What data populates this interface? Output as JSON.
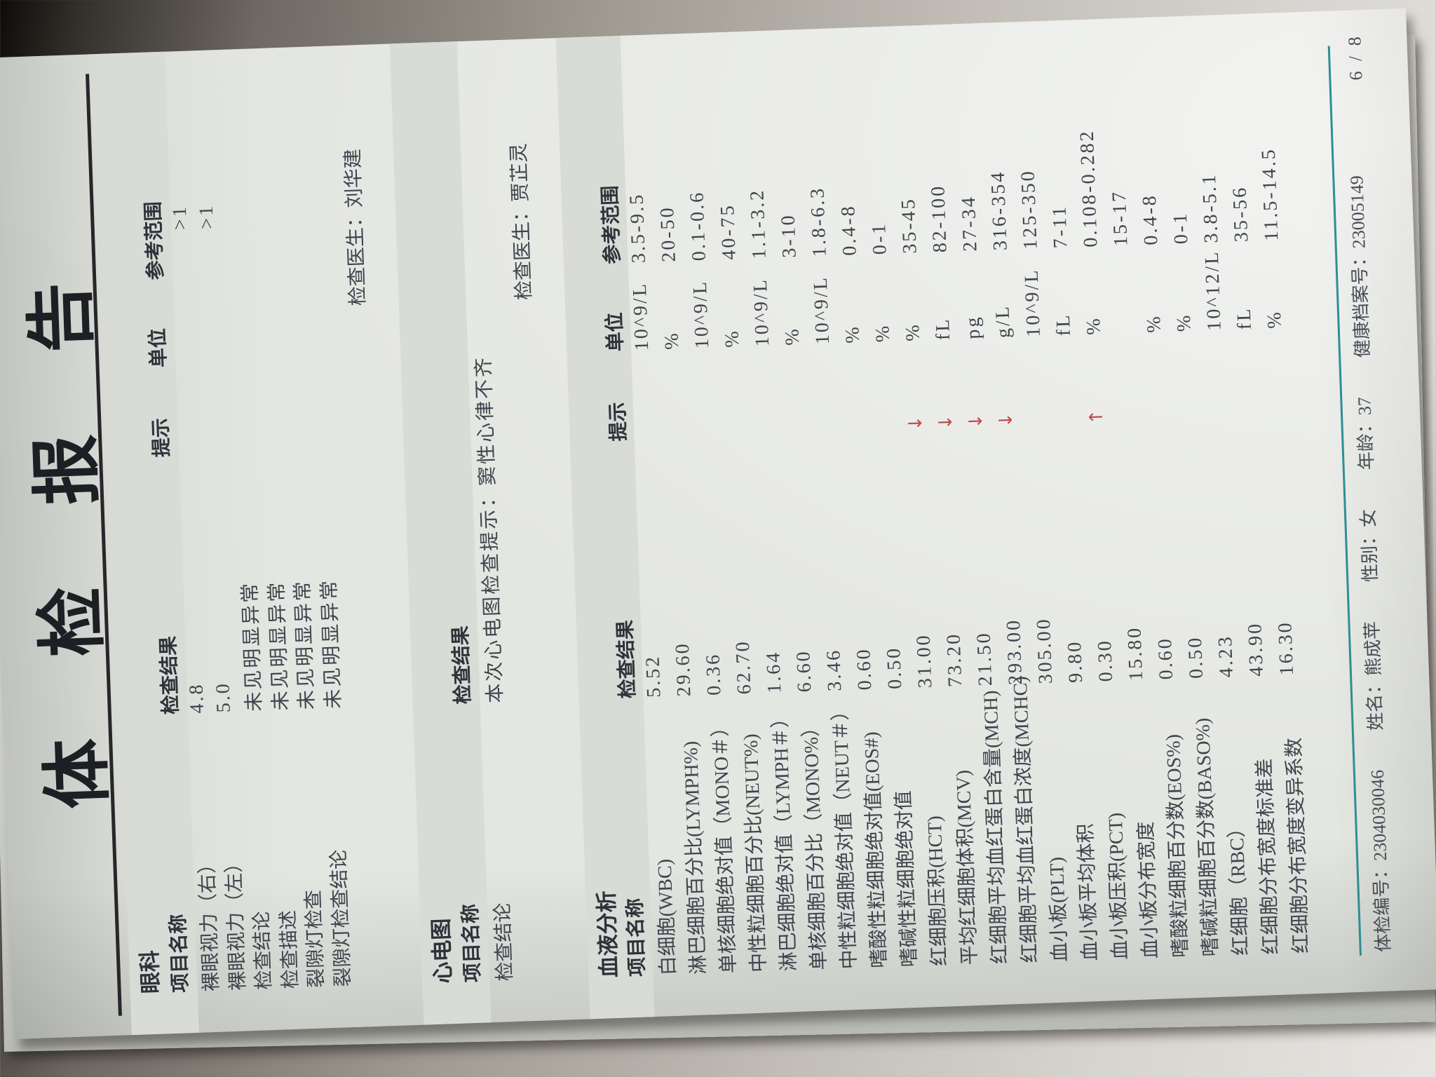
{
  "page": {
    "title": "体 检 报 告",
    "page_indicator": "6 / 8"
  },
  "colors": {
    "accent_teal": "#2f8e94",
    "arrow_red": "#c04a48",
    "paper": "#e4e6e1"
  },
  "columns": {
    "name": "项目名称",
    "result": "检查结果",
    "hint": "提示",
    "unit": "单位",
    "range": "参考范围"
  },
  "sections": [
    {
      "id": "eye",
      "title": "眼科",
      "headers": {
        "name": "项目名称",
        "result": "检查结果",
        "hint": "提示",
        "unit": "单位",
        "range": "参考范围"
      },
      "rows": [
        {
          "name": "裸眼视力（右）",
          "result": "4.8",
          "hint": "",
          "unit": "",
          "range": ">1"
        },
        {
          "name": "裸眼视力（左）",
          "result": "5.0",
          "hint": "",
          "unit": "",
          "range": ">1"
        },
        {
          "name": "检查结论",
          "result": "未见明显异常",
          "hint": "",
          "unit": "",
          "range": ""
        },
        {
          "name": "检查描述",
          "result": "未见明显异常",
          "hint": "",
          "unit": "",
          "range": ""
        },
        {
          "name": "裂隙灯检查",
          "result": "未见明显异常",
          "hint": "",
          "unit": "",
          "range": ""
        },
        {
          "name": "裂隙灯检查结论",
          "result": "未见明显异常",
          "hint": "",
          "unit": "",
          "range": ""
        }
      ],
      "doctor_label": "检查医生：",
      "doctor": "刘华建"
    },
    {
      "id": "ecg",
      "title": "心电图",
      "headers": {
        "name": "项目名称",
        "result": "检查结果",
        "hint": "",
        "unit": "",
        "range": ""
      },
      "rows": [
        {
          "name": "检查结论",
          "result": "本次心电图检查提示：窦性心律不齐",
          "hint": "",
          "unit": "",
          "range": ""
        }
      ],
      "doctor_label": "检查医生：",
      "doctor": "贾芷灵"
    },
    {
      "id": "blood",
      "title": "血液分析",
      "headers": {
        "name": "项目名称",
        "result": "检查结果",
        "hint": "提示",
        "unit": "单位",
        "range": "参考范围"
      },
      "rows": [
        {
          "name": "白细胞(WBC)",
          "result": "5.52",
          "hint": "",
          "unit": "10^9/L",
          "range": "3.5-9.5"
        },
        {
          "name": "淋巴细胞百分比(LYMPH%)",
          "result": "29.60",
          "hint": "",
          "unit": "%",
          "range": "20-50"
        },
        {
          "name": "单核细胞绝对值（MONO＃）",
          "result": "0.36",
          "hint": "",
          "unit": "10^9/L",
          "range": "0.1-0.6"
        },
        {
          "name": "中性粒细胞百分比(NEUT%)",
          "result": "62.70",
          "hint": "",
          "unit": "%",
          "range": "40-75"
        },
        {
          "name": "淋巴细胞绝对值（LYMPH＃）",
          "result": "1.64",
          "hint": "",
          "unit": "10^9/L",
          "range": "1.1-3.2"
        },
        {
          "name": "单核细胞百分比（MONO%）",
          "result": "6.60",
          "hint": "",
          "unit": "%",
          "range": "3-10"
        },
        {
          "name": "中性粒细胞绝对值（NEUT＃）",
          "result": "3.46",
          "hint": "",
          "unit": "10^9/L",
          "range": "1.8-6.3"
        },
        {
          "name": "嗜酸性粒细胞绝对值(EOS#)",
          "result": "0.60",
          "hint": "",
          "unit": "%",
          "range": "0.4-8"
        },
        {
          "name": "嗜碱性粒细胞绝对值",
          "result": "0.50",
          "hint": "",
          "unit": "%",
          "range": "0-1"
        },
        {
          "name": "红细胞压积(HCT)",
          "result": "31.00",
          "hint": "↓",
          "unit": "%",
          "range": "35-45"
        },
        {
          "name": "平均红细胞体积(MCV)",
          "result": "73.20",
          "hint": "↓",
          "unit": "fL",
          "range": "82-100"
        },
        {
          "name": "红细胞平均血红蛋白含量(MCH)",
          "result": "21.50",
          "hint": "↓",
          "unit": "pg",
          "range": "27-34"
        },
        {
          "name": "红细胞平均血红蛋白浓度(MCHC)",
          "result": "293.00",
          "hint": "↓",
          "unit": "g/L",
          "range": "316-354"
        },
        {
          "name": "血小板(PLT)",
          "result": "305.00",
          "hint": "",
          "unit": "10^9/L",
          "range": "125-350"
        },
        {
          "name": "血小板平均体积",
          "result": "9.80",
          "hint": "",
          "unit": "fL",
          "range": "7-11"
        },
        {
          "name": "血小板压积(PCT)",
          "result": "0.30",
          "hint": "↑",
          "unit": "%",
          "range": "0.108-0.282"
        },
        {
          "name": "血小板分布宽度",
          "result": "15.80",
          "hint": "",
          "unit": "",
          "range": "15-17"
        },
        {
          "name": "嗜酸粒细胞百分数(EOS%)",
          "result": "0.60",
          "hint": "",
          "unit": "%",
          "range": "0.4-8"
        },
        {
          "name": "嗜碱粒细胞百分数(BASO%)",
          "result": "0.50",
          "hint": "",
          "unit": "%",
          "range": "0-1"
        },
        {
          "name": "红细胞（RBC）",
          "result": "4.23",
          "hint": "",
          "unit": "10^12/L",
          "range": "3.8-5.1"
        },
        {
          "name": "红细胞分布宽度标准差",
          "result": "43.90",
          "hint": "",
          "unit": "fL",
          "range": "35-56"
        },
        {
          "name": "红细胞分布宽度变异系数",
          "result": "16.30",
          "hint": "",
          "unit": "%",
          "range": "11.5-14.5"
        }
      ]
    }
  ],
  "footer": {
    "exam_no": "体检编号：2304030046",
    "name": "姓名：熊成苹",
    "sex": "性别：女",
    "age": "年龄：37",
    "archive_no": "健康档案号：23005149"
  }
}
